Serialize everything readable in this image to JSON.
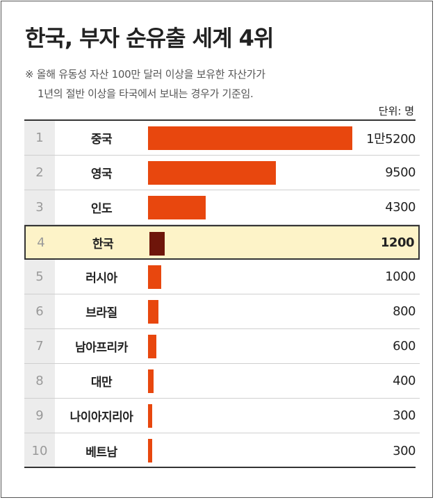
{
  "title": "한국, 부자 순유출 세계 4위",
  "note_line1": "※ 올해 유동성 자산 100만 달러 이상을 보유한 자산가가",
  "note_line2": "1년의 절반 이상을 타국에서 보내는 경우가 기준임.",
  "unit": "단위: 명",
  "colors": {
    "bar": "#e8470e",
    "highlight_bar": "#6e150a",
    "highlight_bg": "#fdf3c8"
  },
  "chart_data": {
    "type": "bar",
    "orientation": "horizontal",
    "categories": [
      "중국",
      "영국",
      "인도",
      "한국",
      "러시아",
      "브라질",
      "남아프리카",
      "대만",
      "나이아지리아",
      "베트남"
    ],
    "ranks": [
      "1",
      "2",
      "3",
      "4",
      "5",
      "6",
      "7",
      "8",
      "9",
      "10"
    ],
    "values": [
      15200,
      9500,
      4300,
      1200,
      1000,
      800,
      600,
      400,
      300,
      300
    ],
    "value_labels": [
      "1만5200",
      "9500",
      "4300",
      "1200",
      "1000",
      "800",
      "600",
      "400",
      "300",
      "300"
    ],
    "highlight": "한국",
    "xlim": [
      0,
      15200
    ]
  }
}
